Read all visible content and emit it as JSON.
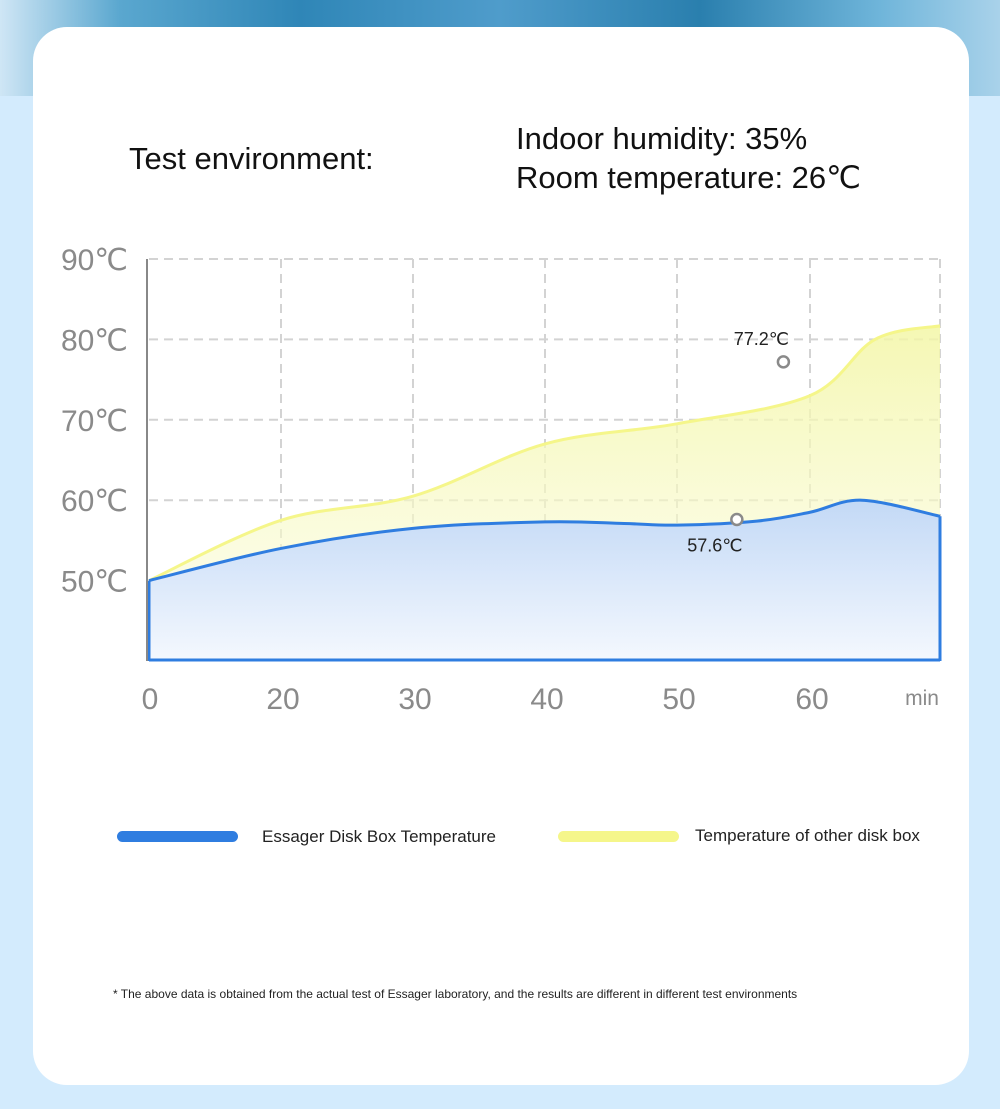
{
  "environment": {
    "label": "Test environment:",
    "humidity": "Indoor humidity: 35%",
    "room_temperature": "Room temperature: 26℃"
  },
  "legend": {
    "essager": "Essager Disk Box Temperature",
    "other": "Temperature of other disk box"
  },
  "footnote": "* The above data is obtained from the actual test of Essager laboratory, and the results are different in different test environments",
  "colors": {
    "essager": "#2f7de0",
    "other": "#f5f68a",
    "grid": "#d3d3d3"
  },
  "chart_data": {
    "type": "area",
    "x_unit": "min",
    "y_ticks": [
      "90℃",
      "80℃",
      "70℃",
      "60℃",
      "50℃"
    ],
    "x_ticks": [
      "0",
      "20",
      "30",
      "40",
      "50",
      "60"
    ],
    "ylim": [
      40,
      90
    ],
    "grid": true,
    "legend_position": "bottom",
    "series": [
      {
        "key": "other",
        "x": [
          0,
          1,
          2,
          3,
          4,
          5,
          5.5,
          6
        ],
        "values": [
          50,
          57.5,
          60.5,
          67,
          69.5,
          73,
          80,
          81.7
        ]
      },
      {
        "key": "essager",
        "x": [
          0,
          1,
          2,
          3,
          3.6,
          4,
          4.6,
          5,
          5.4,
          6
        ],
        "values": [
          50,
          54,
          56.5,
          57.3,
          57.1,
          56.9,
          57.4,
          58.5,
          60,
          58
        ]
      }
    ],
    "annotations": [
      {
        "series": "other",
        "x": 4.8,
        "y": 77.2,
        "label": "77.2℃",
        "label_position": "above"
      },
      {
        "series": "essager",
        "x": 4.45,
        "y": 57.6,
        "label": "57.6℃",
        "label_position": "below"
      }
    ]
  }
}
